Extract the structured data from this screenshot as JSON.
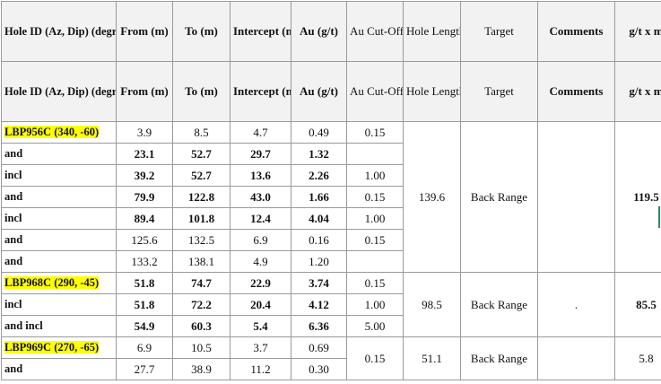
{
  "header": {
    "hole_id": "Hole ID (Az, Dip) (degrees)",
    "from": "From (m)",
    "to": "To (m)",
    "intercept": "Intercept (m)",
    "au": "Au (g/t)",
    "cutoff": "Au Cut-Off",
    "hole_length": "Hole Length (m)",
    "target": "Target",
    "comments": "Comments",
    "gtxm": "g/t x m"
  },
  "holes": [
    {
      "id": "LBP956C (340, -60)",
      "hole_length": "139.6",
      "target": "Back Range",
      "comments": "",
      "gtxm": "119.5",
      "rows": [
        {
          "label": "LBP956C (340, -60)",
          "from": "3.9",
          "to": "8.5",
          "intercept": "4.7",
          "au": "0.49",
          "cutoff": "0.15"
        },
        {
          "label": "and",
          "from": "23.1",
          "to": "52.7",
          "intercept": "29.7",
          "au": "1.32",
          "cutoff": ""
        },
        {
          "label": "incl",
          "from": "39.2",
          "to": "52.7",
          "intercept": "13.6",
          "au": "2.26",
          "cutoff": "1.00"
        },
        {
          "label": "and",
          "from": "79.9",
          "to": "122.8",
          "intercept": "43.0",
          "au": "1.66",
          "cutoff": "0.15"
        },
        {
          "label": "incl",
          "from": "89.4",
          "to": "101.8",
          "intercept": "12.4",
          "au": "4.04",
          "cutoff": "1.00"
        },
        {
          "label": "and",
          "from": "125.6",
          "to": "132.5",
          "intercept": "6.9",
          "au": "0.16",
          "cutoff": "0.15"
        },
        {
          "label": "and",
          "from": "133.2",
          "to": "138.1",
          "intercept": "4.9",
          "au": "1.20",
          "cutoff": ""
        }
      ]
    },
    {
      "id": "LBP968C (290, -45)",
      "hole_length": "98.5",
      "target": "Back Range",
      "comments": ".",
      "gtxm": "85.5",
      "rows": [
        {
          "label": "LBP968C (290, -45)",
          "from": "51.8",
          "to": "74.7",
          "intercept": "22.9",
          "au": "3.74",
          "cutoff": "0.15"
        },
        {
          "label": "incl",
          "from": "51.8",
          "to": "72.2",
          "intercept": "20.4",
          "au": "4.12",
          "cutoff": "1.00"
        },
        {
          "label": "and incl",
          "from": "54.9",
          "to": "60.3",
          "intercept": "5.4",
          "au": "6.36",
          "cutoff": "5.00"
        }
      ]
    },
    {
      "id": "LBP969C (270, -65)",
      "hole_length": "51.1",
      "target": "Back Range",
      "comments": "",
      "gtxm": "5.8",
      "cutoff": "0.15",
      "rows": [
        {
          "label": "LBP969C (270, -65)",
          "from": "6.9",
          "to": "10.5",
          "intercept": "3.7",
          "au": "0.69"
        },
        {
          "label": "and",
          "from": "27.7",
          "to": "38.9",
          "intercept": "11.2",
          "au": "0.30"
        }
      ]
    }
  ],
  "colors": {
    "highlight": "#ffff00",
    "border": "#9a9a9a",
    "header_bg": "#f2f2f2"
  }
}
